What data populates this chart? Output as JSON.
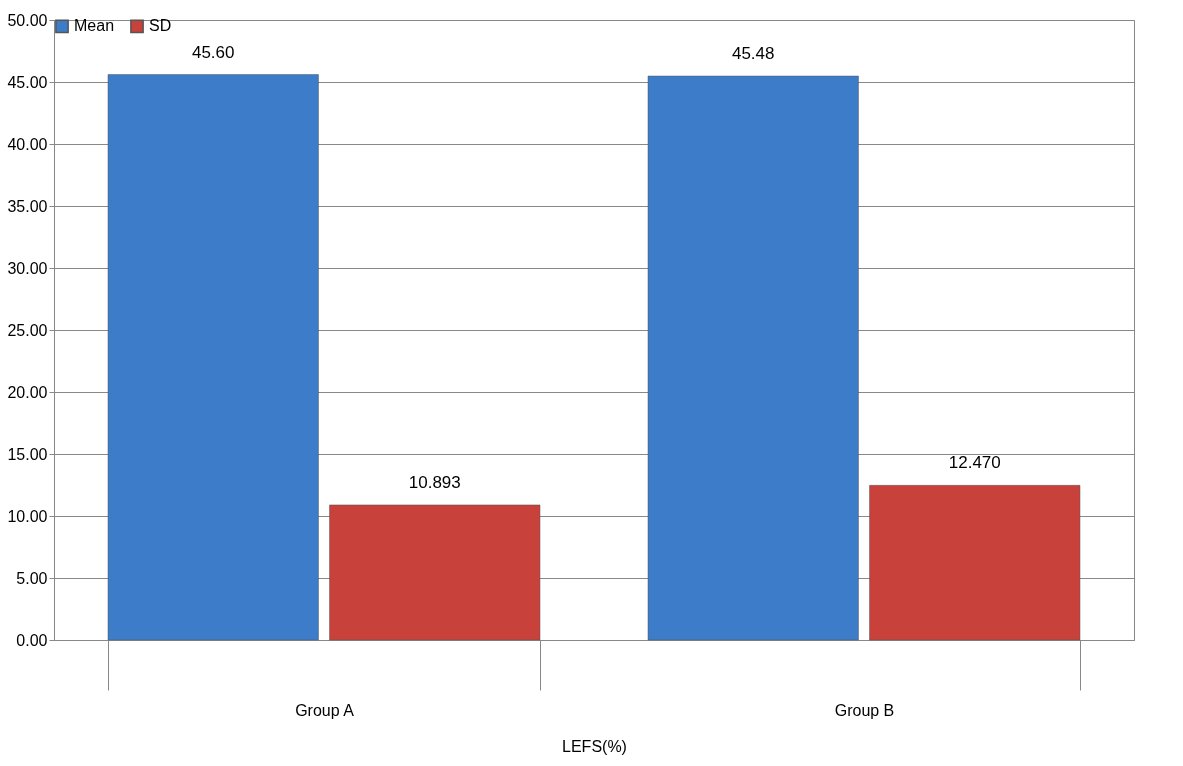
{
  "chart_data": {
    "type": "bar",
    "xlabel": "LEFS(%)",
    "categories": [
      "Group A",
      "Group B"
    ],
    "series": [
      {
        "name": "Mean",
        "color": "#3d7cc9",
        "values": [
          45.6,
          45.48
        ],
        "value_labels": [
          "45.60",
          "45.48"
        ]
      },
      {
        "name": "SD",
        "color": "#c8413b",
        "values": [
          10.893,
          12.47
        ],
        "value_labels": [
          "10.893",
          "12.470"
        ]
      }
    ],
    "ylim": [
      0,
      50
    ],
    "yticks": [
      {
        "value": 0,
        "label": "0.00"
      },
      {
        "value": 5,
        "label": "5.00"
      },
      {
        "value": 10,
        "label": "10.00"
      },
      {
        "value": 15,
        "label": "15.00"
      },
      {
        "value": 20,
        "label": "20.00"
      },
      {
        "value": 25,
        "label": "25.00"
      },
      {
        "value": 30,
        "label": "30.00"
      },
      {
        "value": 35,
        "label": "35.00"
      },
      {
        "value": 40,
        "label": "40.00"
      },
      {
        "value": 45,
        "label": "45.00"
      },
      {
        "value": 50,
        "label": "50.00"
      }
    ],
    "grid": "y",
    "legend": "top"
  }
}
